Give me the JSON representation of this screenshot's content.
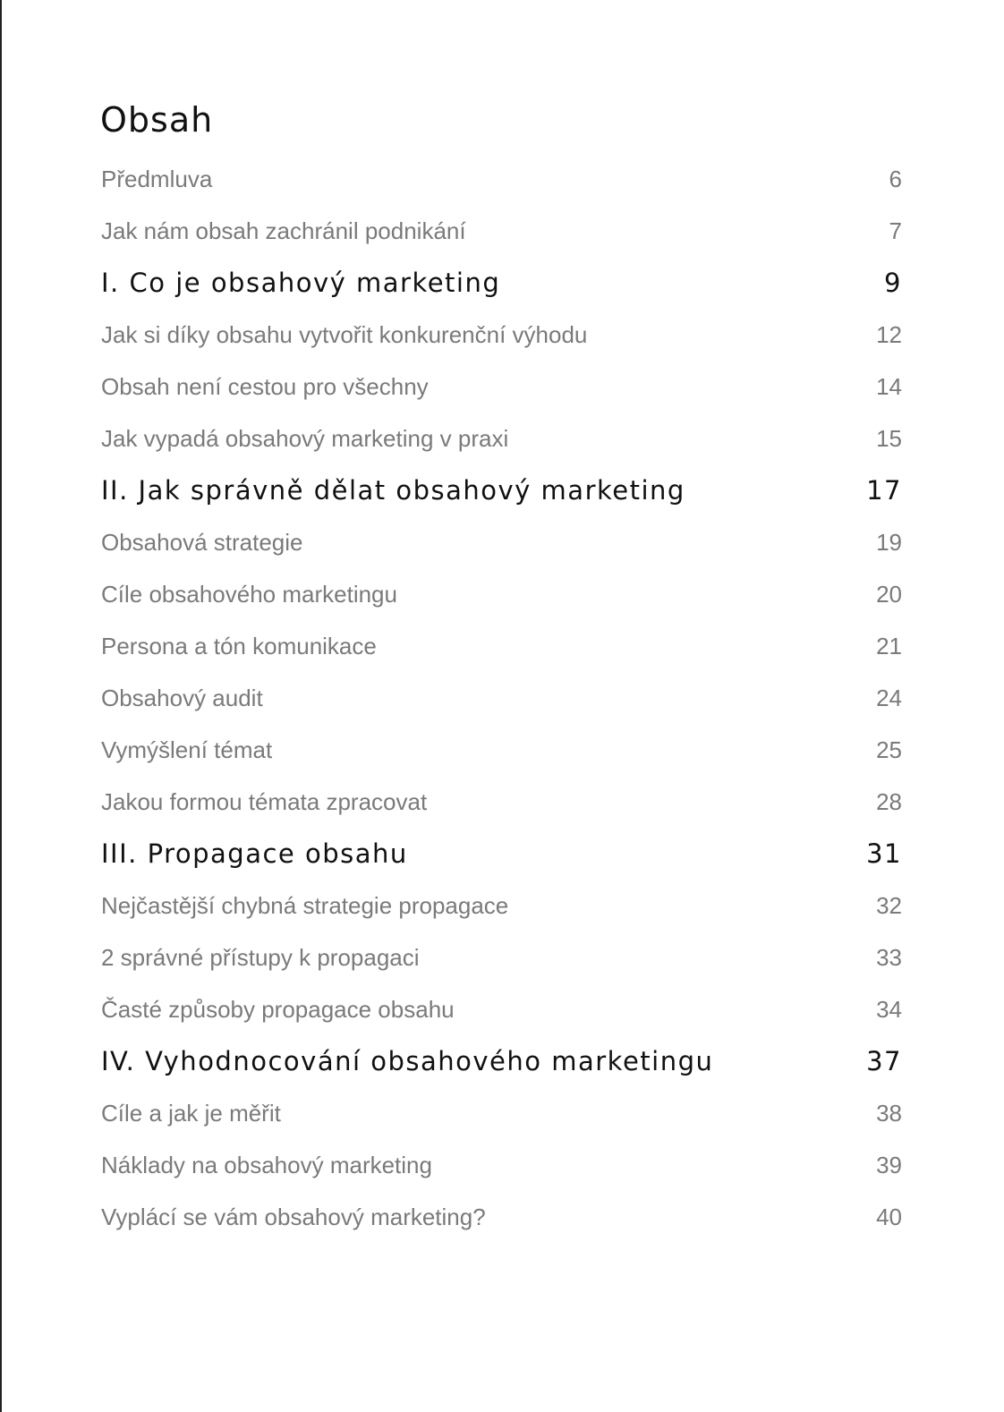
{
  "title": "Obsah",
  "entries": [
    {
      "label": "Předmluva",
      "page": "6",
      "type": "sub"
    },
    {
      "label": "Jak nám obsah zachránil podnikání",
      "page": "7",
      "type": "sub"
    },
    {
      "label": "I. Co je obsahový marketing",
      "page": "9",
      "type": "chapter"
    },
    {
      "label": "Jak si díky obsahu vytvořit konkurenční výhodu",
      "page": "12",
      "type": "sub"
    },
    {
      "label": "Obsah není cestou pro všechny",
      "page": "14",
      "type": "sub"
    },
    {
      "label": "Jak vypadá obsahový marketing v praxi",
      "page": "15",
      "type": "sub"
    },
    {
      "label": "II. Jak správně dělat obsahový marketing",
      "page": "17",
      "type": "chapter"
    },
    {
      "label": "Obsahová strategie",
      "page": "19",
      "type": "sub"
    },
    {
      "label": "Cíle obsahového marketingu",
      "page": "20",
      "type": "sub"
    },
    {
      "label": "Persona a tón komunikace",
      "page": "21",
      "type": "sub"
    },
    {
      "label": "Obsahový audit",
      "page": "24",
      "type": "sub"
    },
    {
      "label": "Vymýšlení témat",
      "page": "25",
      "type": "sub"
    },
    {
      "label": "Jakou formou témata zpracovat",
      "page": "28",
      "type": "sub"
    },
    {
      "label": "III. Propagace obsahu",
      "page": "31",
      "type": "chapter"
    },
    {
      "label": "Nejčastější chybná strategie propagace",
      "page": "32",
      "type": "sub"
    },
    {
      "label": "2 správné přístupy k propagaci",
      "page": "33",
      "type": "sub"
    },
    {
      "label": "Časté způsoby propagace obsahu",
      "page": "34",
      "type": "sub"
    },
    {
      "label": "IV. Vyhodnocování obsahového marketingu",
      "page": "37",
      "type": "chapter"
    },
    {
      "label": "Cíle a jak je měřit",
      "page": "38",
      "type": "sub"
    },
    {
      "label": "Náklady na obsahový marketing",
      "page": "39",
      "type": "sub"
    },
    {
      "label": "Vyplácí se vám obsahový marketing?",
      "page": "40",
      "type": "sub"
    }
  ]
}
